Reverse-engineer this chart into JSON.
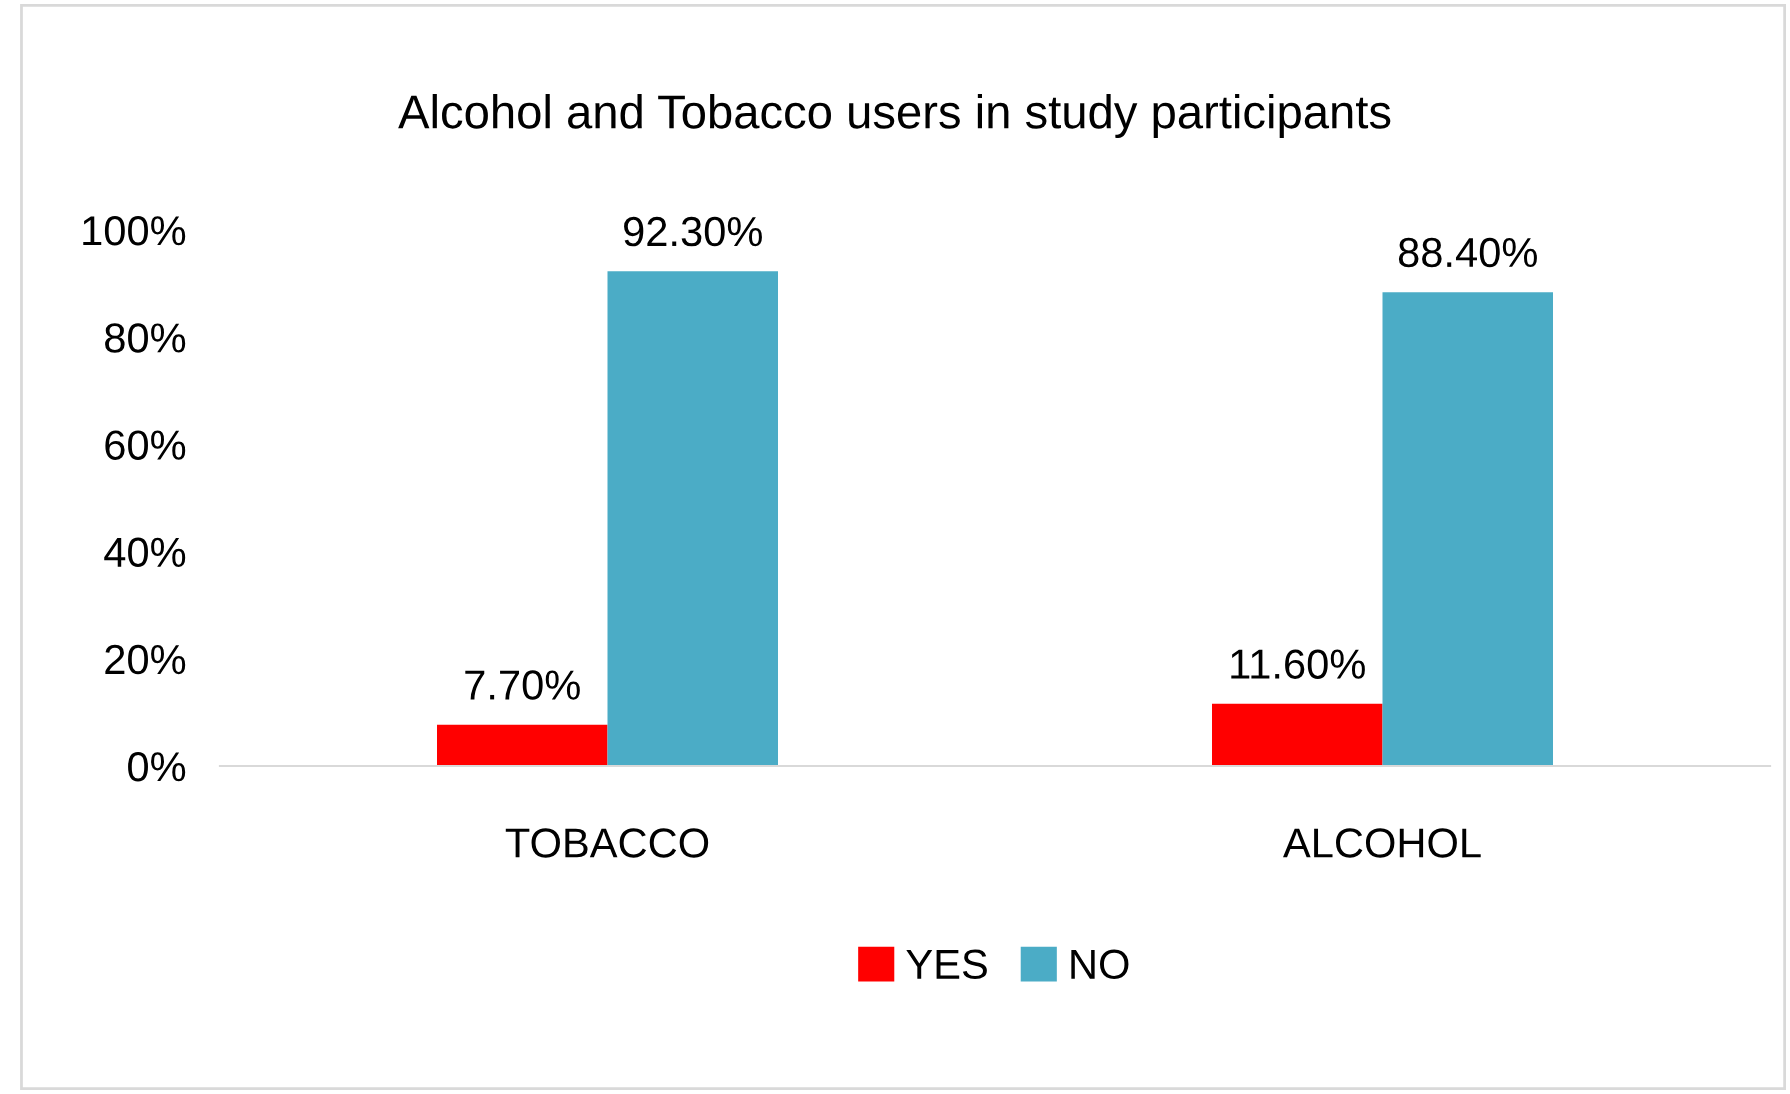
{
  "chart_data": {
    "type": "bar",
    "title": "Alcohol and Tobacco users in study participants",
    "categories": [
      "TOBACCO",
      "ALCOHOL"
    ],
    "series": [
      {
        "name": "YES",
        "color": "#ff0000",
        "values": [
          7.7,
          11.6
        ],
        "value_labels": [
          "7.70%",
          "11.60%"
        ]
      },
      {
        "name": "NO",
        "color": "#4bacc6",
        "values": [
          92.3,
          88.4
        ],
        "value_labels": [
          "92.30%",
          "88.40%"
        ]
      }
    ],
    "ylim": [
      0,
      100
    ],
    "yticks": [
      {
        "value": 0,
        "label": "0%"
      },
      {
        "value": 20,
        "label": "20%"
      },
      {
        "value": 40,
        "label": "40%"
      },
      {
        "value": 60,
        "label": "60%"
      },
      {
        "value": 80,
        "label": "80%"
      },
      {
        "value": 100,
        "label": "100%"
      }
    ],
    "grid": false,
    "legend": "bottom"
  }
}
